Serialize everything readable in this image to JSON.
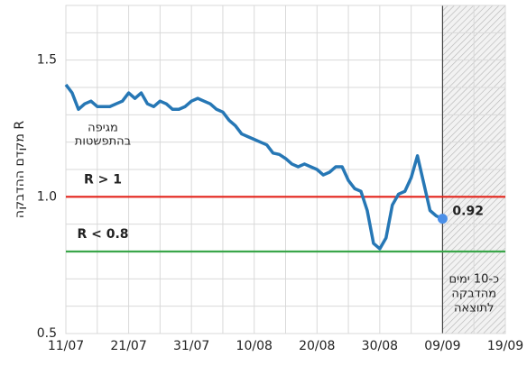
{
  "chart_data": {
    "type": "line",
    "ylabel": "מקדם ההדבקה R",
    "x": [
      "11/07",
      "12/07",
      "13/07",
      "14/07",
      "15/07",
      "16/07",
      "17/07",
      "18/07",
      "19/07",
      "20/07",
      "21/07",
      "22/07",
      "23/07",
      "24/07",
      "25/07",
      "26/07",
      "27/07",
      "28/07",
      "29/07",
      "30/07",
      "31/07",
      "01/08",
      "02/08",
      "03/08",
      "04/08",
      "05/08",
      "06/08",
      "07/08",
      "08/08",
      "09/08",
      "10/08",
      "11/08",
      "12/08",
      "13/08",
      "14/08",
      "15/08",
      "16/08",
      "17/08",
      "18/08",
      "19/08",
      "20/08",
      "21/08",
      "22/08",
      "23/08",
      "24/08",
      "25/08",
      "26/08",
      "27/08",
      "28/08",
      "29/08",
      "30/08",
      "31/08",
      "01/09",
      "02/09",
      "03/09",
      "04/09",
      "05/09",
      "06/09",
      "07/09",
      "08/09",
      "09/09"
    ],
    "series": [
      {
        "name": "R",
        "color": "#2677b5",
        "values": [
          1.41,
          1.38,
          1.32,
          1.34,
          1.35,
          1.33,
          1.33,
          1.33,
          1.34,
          1.35,
          1.38,
          1.36,
          1.38,
          1.34,
          1.33,
          1.35,
          1.34,
          1.32,
          1.32,
          1.33,
          1.35,
          1.36,
          1.35,
          1.34,
          1.32,
          1.31,
          1.28,
          1.26,
          1.23,
          1.22,
          1.21,
          1.2,
          1.19,
          1.16,
          1.155,
          1.14,
          1.12,
          1.11,
          1.12,
          1.11,
          1.1,
          1.08,
          1.09,
          1.11,
          1.11,
          1.06,
          1.03,
          1.02,
          0.95,
          0.83,
          0.81,
          0.85,
          0.97,
          1.01,
          1.02,
          1.07,
          1.15,
          1.05,
          0.95,
          0.93,
          0.92
        ]
      }
    ],
    "end_label": "0.92",
    "end_color": "#4a8fe8",
    "xlim": [
      "11/07",
      "19/09"
    ],
    "xticks": [
      "11/07",
      "21/07",
      "31/07",
      "10/08",
      "20/08",
      "30/08",
      "09/09",
      "19/09"
    ],
    "xminorticks": [
      "16/07",
      "26/07",
      "05/08",
      "15/08",
      "25/08",
      "04/09",
      "14/09"
    ],
    "ylim": [
      0.5,
      1.7
    ],
    "yticks": [
      0.5,
      {
        "value": 1,
        "label": "1.0"
      },
      1.5
    ],
    "yminorticks": [
      0.6,
      0.7,
      0.8,
      0.9,
      1.1,
      1.2,
      1.3,
      1.4,
      1.6
    ],
    "grid": true,
    "hlines": [
      {
        "value": 1,
        "color": "#e3241b",
        "label": "R > 1"
      },
      {
        "value": 0.8,
        "color": "#3aa64a",
        "label": "R < 0.8"
      }
    ],
    "annotation": {
      "lines": [
        "מגיפה",
        "בהתפשטות"
      ],
      "color": "#e3241b"
    },
    "shaded_region": {
      "from": "09/09",
      "to": "19/09",
      "lines": [
        "כ-10 ימים",
        "מהדבקה",
        "לתוצאה"
      ]
    }
  }
}
